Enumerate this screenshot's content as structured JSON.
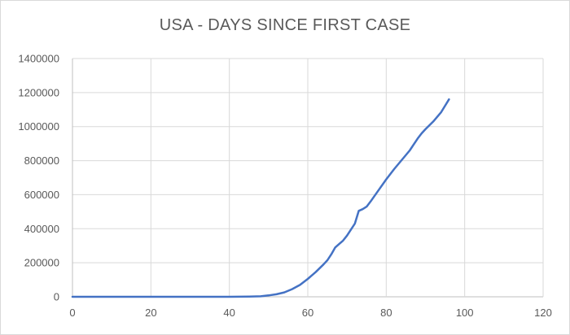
{
  "chart_data": {
    "type": "line",
    "title": "USA - DAYS SINCE FIRST CASE",
    "xlabel": "",
    "ylabel": "",
    "xlim": [
      0,
      120
    ],
    "ylim": [
      0,
      1400000
    ],
    "x_ticks": [
      0,
      20,
      40,
      60,
      80,
      100,
      120
    ],
    "y_ticks": [
      0,
      200000,
      400000,
      600000,
      800000,
      1000000,
      1200000,
      1400000
    ],
    "grid": true,
    "legend": false,
    "series": [
      {
        "color": "#4472c4",
        "x": [
          0,
          10,
          20,
          30,
          40,
          45,
          48,
          50,
          52,
          54,
          56,
          58,
          60,
          62,
          64,
          65,
          66,
          67,
          68,
          69,
          70,
          71,
          72,
          73,
          74,
          75,
          76,
          78,
          80,
          82,
          84,
          86,
          88,
          89,
          90,
          92,
          94,
          96
        ],
        "y": [
          0,
          0,
          0,
          0,
          0,
          1000,
          3000,
          8000,
          15000,
          26000,
          45000,
          70000,
          105000,
          145000,
          190000,
          215000,
          250000,
          290000,
          310000,
          330000,
          360000,
          395000,
          430000,
          505000,
          515000,
          530000,
          560000,
          625000,
          690000,
          750000,
          805000,
          860000,
          930000,
          960000,
          985000,
          1030000,
          1085000,
          1160000
        ]
      }
    ]
  }
}
